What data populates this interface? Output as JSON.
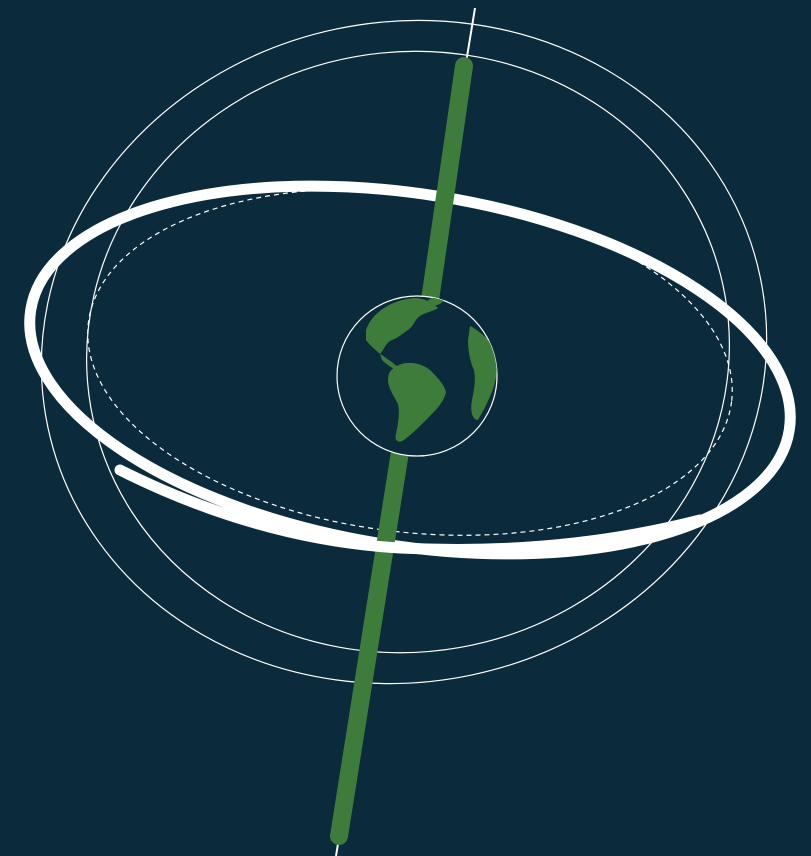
{
  "colors": {
    "background": "#0b2a3b",
    "axis": "#3e7c3b",
    "orbit_line": "#ffffff",
    "earth_land": "#3e7c3b",
    "earth_ocean": "#0b2a3b"
  },
  "diagram": {
    "subject": "earth-axis-and-orbit-rings",
    "icons": [
      "earth-globe-icon"
    ]
  }
}
